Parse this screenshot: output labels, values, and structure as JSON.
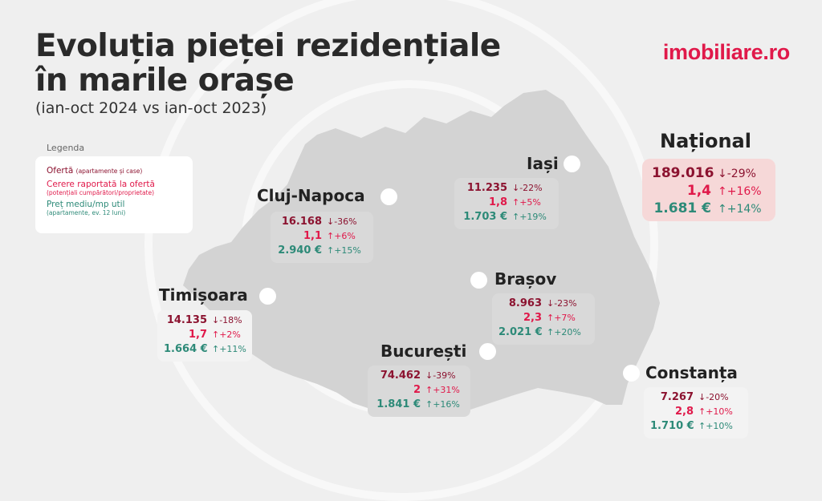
{
  "header": {
    "title_line1": "Evoluția pieței rezidențiale",
    "title_line2": "în marile orașe",
    "subtitle": "(ian-oct 2024 vs ian-oct 2023)",
    "logo": "imobiliare.ro"
  },
  "legend": {
    "title": "Legenda",
    "items": [
      {
        "label": "Ofertă",
        "note": "(apartamente și case)"
      },
      {
        "label": "Cerere raportată la ofertă",
        "note": "(potențiali cumpărători/proprietate)"
      },
      {
        "label": "Preț mediu/mp util",
        "note": "(apartamente, ev. 12 luni)"
      }
    ]
  },
  "colors": {
    "offer": "#8c1330",
    "demand": "#e0194a",
    "price": "#2d8a78",
    "map": "#d3d3d3",
    "brand": "#e0194a"
  },
  "cities": {
    "national": {
      "name": "Național",
      "offer": "189.016",
      "offer_change": "↓-29%",
      "demand": "1,4",
      "demand_change": "↑+16%",
      "price": "1.681 €",
      "price_change": "↑+14%"
    },
    "cluj": {
      "name": "Cluj-Napoca",
      "offer": "16.168",
      "offer_change": "↓-36%",
      "demand": "1,1",
      "demand_change": "↑+6%",
      "price": "2.940 €",
      "price_change": "↑+15%"
    },
    "iasi": {
      "name": "Iași",
      "offer": "11.235",
      "offer_change": "↓-22%",
      "demand": "1,8",
      "demand_change": "↑+5%",
      "price": "1.703 €",
      "price_change": "↑+19%"
    },
    "timisoara": {
      "name": "Timișoara",
      "offer": "14.135",
      "offer_change": "↓-18%",
      "demand": "1,7",
      "demand_change": "↑+2%",
      "price": "1.664 €",
      "price_change": "↑+11%"
    },
    "brasov": {
      "name": "Brașov",
      "offer": "8.963",
      "offer_change": "↓-23%",
      "demand": "2,3",
      "demand_change": "↑+7%",
      "price": "2.021 €",
      "price_change": "↑+20%"
    },
    "bucuresti": {
      "name": "București",
      "offer": "74.462",
      "offer_change": "↓-39%",
      "demand": "2",
      "demand_change": "↑+31%",
      "price": "1.841 €",
      "price_change": "↑+16%"
    },
    "constanta": {
      "name": "Constanța",
      "offer": "7.267",
      "offer_change": "↓-20%",
      "demand": "2,8",
      "demand_change": "↑+10%",
      "price": "1.710 €",
      "price_change": "↑+10%"
    }
  }
}
